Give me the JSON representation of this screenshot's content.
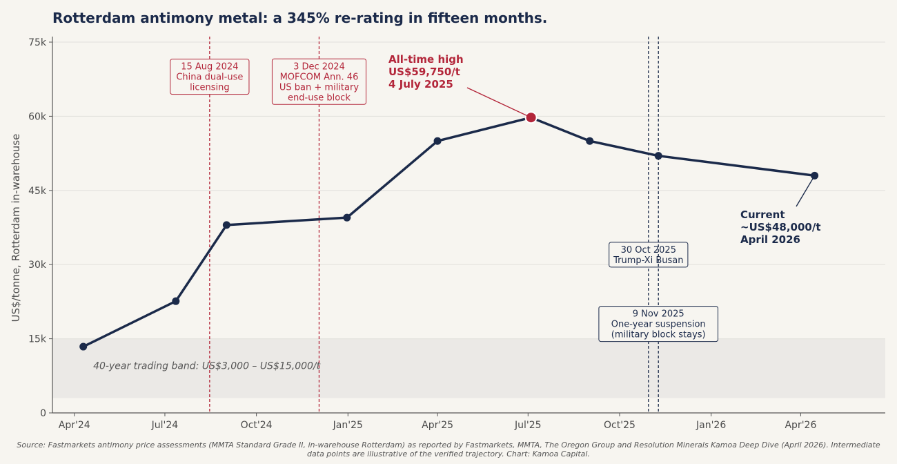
{
  "chart_data": {
    "type": "line",
    "title": "Rotterdam antimony metal: a 345% re-rating in fifteen months.",
    "xlabel": "",
    "ylabel": "US$/tonne, Rotterdam in-warehouse",
    "ylim": [
      0,
      75000
    ],
    "xlim": [
      "2024-03-10",
      "2026-06-25"
    ],
    "y_ticks": [
      0,
      15000,
      30000,
      45000,
      60000,
      75000
    ],
    "y_tick_labels": [
      "0",
      "15k",
      "30k",
      "45k",
      "60k",
      "75k"
    ],
    "x_ticks": [
      "2024-04-01",
      "2024-07-01",
      "2024-10-01",
      "2025-01-01",
      "2025-04-01",
      "2025-07-01",
      "2025-10-01",
      "2026-01-01",
      "2026-04-01"
    ],
    "x_tick_labels": [
      "Apr'24",
      "Jul'24",
      "Oct'24",
      "Jan'25",
      "Apr'25",
      "Jul'25",
      "Oct'25",
      "Jan'26",
      "Apr'26"
    ],
    "grid": "horizontal",
    "series": [
      {
        "name": "Rotterdam antimony metal price",
        "color": "#1b2a4a",
        "points": [
          {
            "date": "2024-04-10",
            "value": 13400
          },
          {
            "date": "2024-07-12",
            "value": 22600
          },
          {
            "date": "2024-09-01",
            "value": 38000
          },
          {
            "date": "2024-12-31",
            "value": 39500
          },
          {
            "date": "2025-04-01",
            "value": 55000
          },
          {
            "date": "2025-07-04",
            "value": 59750
          },
          {
            "date": "2025-09-01",
            "value": 55000
          },
          {
            "date": "2025-11-09",
            "value": 52000
          },
          {
            "date": "2026-04-15",
            "value": 48000
          }
        ]
      }
    ],
    "band": {
      "from": 3000,
      "to": 15000,
      "label": "40-year trading band: US$3,000 – US$15,000/t",
      "color": "#ebe9e6"
    },
    "events": [
      {
        "date": "2024-08-15",
        "lines": [
          "15 Aug 2024",
          "China dual-use",
          "licensing"
        ],
        "color": "#b3263a",
        "box_value": 68000
      },
      {
        "date": "2024-12-03",
        "lines": [
          "3 Dec 2024",
          "MOFCOM Ann. 46",
          "US ban + military",
          "end-use block"
        ],
        "color": "#b3263a",
        "box_value": 67000
      },
      {
        "date": "2025-10-30",
        "lines": [
          "30 Oct 2025",
          "Trump-Xi Busan"
        ],
        "color": "#1b2a4a",
        "box_value": 32000
      },
      {
        "date": "2025-11-09",
        "lines": [
          "9 Nov 2025",
          "One-year suspension",
          "(military block stays)"
        ],
        "color": "#1b2a4a",
        "box_value": 18000
      }
    ],
    "annotations": [
      {
        "id": "peak",
        "lines": [
          "All-time high",
          "US$59,750/t",
          "4 July 2025"
        ],
        "date": "2025-07-04",
        "value": 59750,
        "color": "#b3263a"
      },
      {
        "id": "current",
        "lines": [
          "Current",
          "~US$48,000/t",
          "April 2026"
        ],
        "date": "2026-04-15",
        "value": 48000,
        "color": "#1b2a4a"
      }
    ]
  },
  "colors": {
    "background": "#f7f5f0",
    "line": "#1b2a4a",
    "accent": "#b3263a",
    "grid": "#e2e0dc",
    "axis": "#555555"
  },
  "source_lines": [
    "Source: Fastmarkets antimony price assessments (MMTA Standard Grade II, in-warehouse Rotterdam) as reported by Fastmarkets, MMTA, The Oregon Group and Resolution Minerals Kamoa Deep Dive (April 2026). Intermediate",
    "data points are illustrative of the verified trajectory. Chart: Kamoa Capital."
  ]
}
